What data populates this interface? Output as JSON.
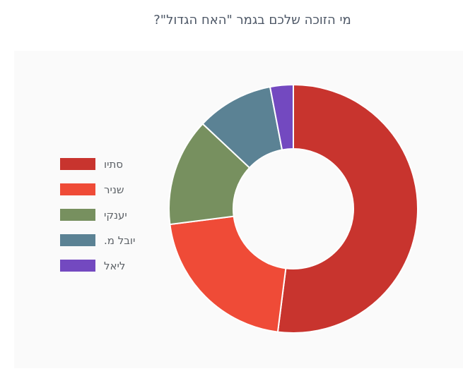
{
  "title": {
    "text": "מי הזוכה שלכם בגמר \"האח הגדול\"?"
  },
  "legend": {
    "position": "left"
  },
  "chart_data": {
    "type": "pie",
    "donut": true,
    "title": "מי הזוכה שלכם בגמר \"האח הגדול\"?",
    "categories": [
      "סתיו",
      "שניר",
      "יענקי",
      "יובל מ.",
      "ליאל"
    ],
    "values": [
      52,
      21,
      14,
      10,
      3
    ],
    "unit": "percent",
    "colors": [
      "#c8342e",
      "#ef4b37",
      "#77905f",
      "#5b8294",
      "#7349c0"
    ],
    "start_angle_deg": 0,
    "direction": "clockwise",
    "legend_position": "left",
    "inner_radius_ratio": 0.48
  },
  "style": {
    "page_bg": "#ffffff",
    "panel_bg": "#fafafa",
    "title_color": "#4d5766",
    "legend_text_color": "#5c6166",
    "slice_gap_color": "#ffffff"
  }
}
